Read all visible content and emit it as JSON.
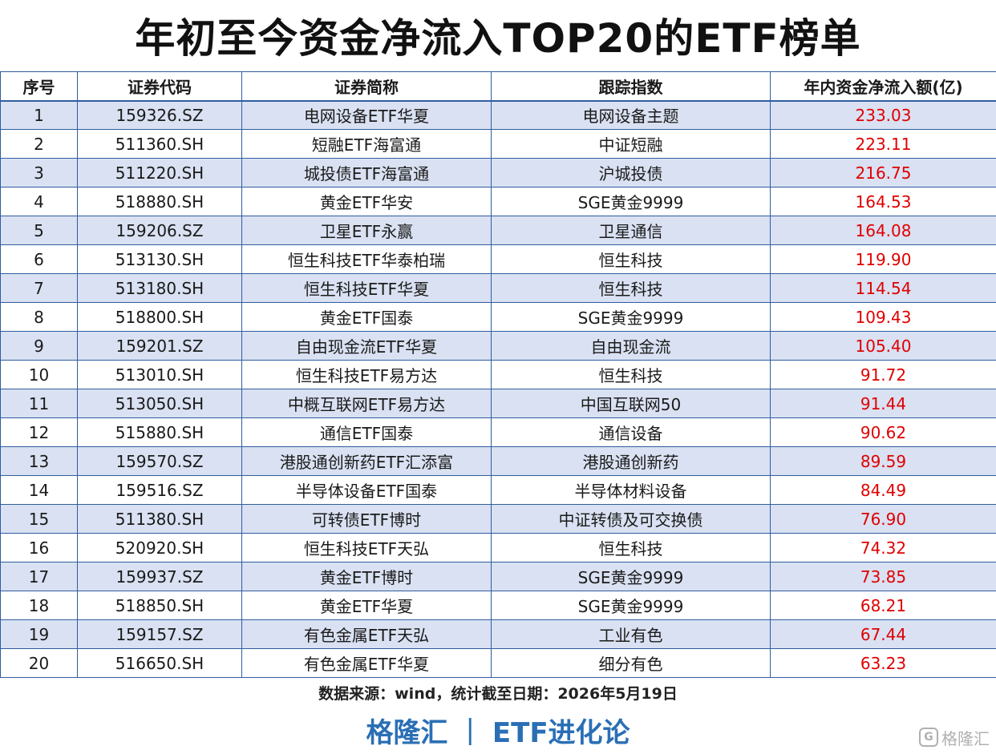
{
  "title": "年初至今资金净流入TOP20的ETF榜单",
  "table": {
    "headers": [
      "序号",
      "证券代码",
      "证券简称",
      "跟踪指数",
      "年内资金净流入额(亿)"
    ],
    "rows": [
      [
        "1",
        "159326.SZ",
        "电网设备ETF华夏",
        "电网设备主题",
        "233.03"
      ],
      [
        "2",
        "511360.SH",
        "短融ETF海富通",
        "中证短融",
        "223.11"
      ],
      [
        "3",
        "511220.SH",
        "城投债ETF海富通",
        "沪城投债",
        "216.75"
      ],
      [
        "4",
        "518880.SH",
        "黄金ETF华安",
        "SGE黄金9999",
        "164.53"
      ],
      [
        "5",
        "159206.SZ",
        "卫星ETF永赢",
        "卫星通信",
        "164.08"
      ],
      [
        "6",
        "513130.SH",
        "恒生科技ETF华泰柏瑞",
        "恒生科技",
        "119.90"
      ],
      [
        "7",
        "513180.SH",
        "恒生科技ETF华夏",
        "恒生科技",
        "114.54"
      ],
      [
        "8",
        "518800.SH",
        "黄金ETF国泰",
        "SGE黄金9999",
        "109.43"
      ],
      [
        "9",
        "159201.SZ",
        "自由现金流ETF华夏",
        "自由现金流",
        "105.40"
      ],
      [
        "10",
        "513010.SH",
        "恒生科技ETF易方达",
        "恒生科技",
        "91.72"
      ],
      [
        "11",
        "513050.SH",
        "中概互联网ETF易方达",
        "中国互联网50",
        "91.44"
      ],
      [
        "12",
        "515880.SH",
        "通信ETF国泰",
        "通信设备",
        "90.62"
      ],
      [
        "13",
        "159570.SZ",
        "港股通创新药ETF汇添富",
        "港股通创新药",
        "89.59"
      ],
      [
        "14",
        "159516.SZ",
        "半导体设备ETF国泰",
        "半导体材料设备",
        "84.49"
      ],
      [
        "15",
        "511380.SH",
        "可转债ETF博时",
        "中证转债及可交换债",
        "76.90"
      ],
      [
        "16",
        "520920.SH",
        "恒生科技ETF天弘",
        "恒生科技",
        "74.32"
      ],
      [
        "17",
        "159937.SZ",
        "黄金ETF博时",
        "SGE黄金9999",
        "73.85"
      ],
      [
        "18",
        "518850.SH",
        "黄金ETF华夏",
        "SGE黄金9999",
        "68.21"
      ],
      [
        "19",
        "159157.SZ",
        "有色金属ETF天弘",
        "工业有色",
        "67.44"
      ],
      [
        "20",
        "516650.SH",
        "有色金属ETF华夏",
        "细分有色",
        "63.23"
      ]
    ]
  },
  "source_note": "数据来源：wind，统计截至日期：2026年5月19日",
  "brand": {
    "left": "格隆汇",
    "separator": "|",
    "right": "ETF进化论"
  },
  "watermark": {
    "icon": "gelonghui-logo-icon",
    "text": "格隆汇"
  },
  "colors": {
    "header_border": "#2f5d9e",
    "stripe": "#d9e1f2",
    "inflow_value": "#e00000",
    "brand": "#2a6fb5"
  }
}
